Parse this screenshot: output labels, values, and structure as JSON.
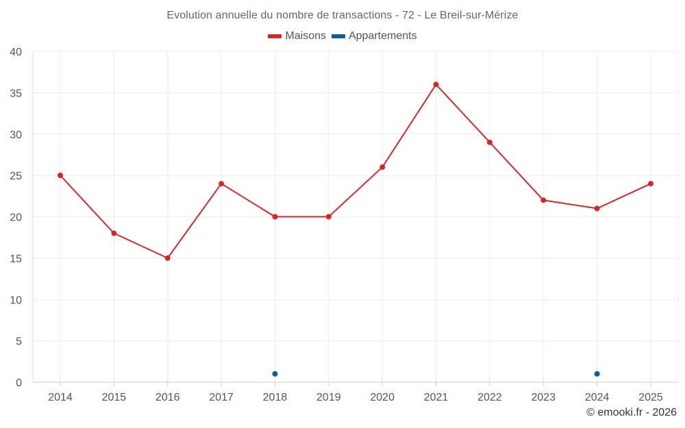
{
  "chart_data": {
    "type": "line",
    "title": "Evolution annuelle du nombre de transactions - 72 - Le Breil-sur-Mérize",
    "xlabel": "",
    "ylabel": "",
    "categories": [
      "2014",
      "2015",
      "2016",
      "2017",
      "2018",
      "2019",
      "2020",
      "2021",
      "2022",
      "2023",
      "2024",
      "2025"
    ],
    "ylim": [
      0,
      40
    ],
    "yticks": [
      "0",
      "5",
      "10",
      "15",
      "20",
      "25",
      "30",
      "35",
      "40"
    ],
    "grid": true,
    "legend_position": "top-center",
    "series": [
      {
        "name": "Maisons",
        "color": "#d62728",
        "line": true,
        "values": [
          25,
          18,
          15,
          24,
          20,
          20,
          26,
          36,
          29,
          22,
          21,
          24
        ]
      },
      {
        "name": "Appartements",
        "color": "#0b5f97",
        "line": false,
        "values": [
          null,
          null,
          null,
          null,
          1,
          null,
          null,
          null,
          null,
          null,
          1,
          null
        ]
      }
    ]
  },
  "credit": "© emooki.fr - 2026"
}
